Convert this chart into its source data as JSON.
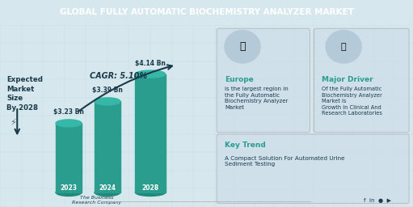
{
  "title": "GLOBAL FULLY AUTOMATIC BIOCHEMISTRY ANALYZER MARKET",
  "title_bg": "#1a3a4a",
  "title_color": "#ffffff",
  "left_bg": "#d6e8ee",
  "right_bg": "#dce9ef",
  "bar_color": "#2a9d8f",
  "bar_years": [
    "2023",
    "2024",
    "2028"
  ],
  "bar_values": [
    3.23,
    3.39,
    4.14
  ],
  "bar_labels": [
    "$3.23 Bn",
    "$3.39 Bn",
    "$4.14 Bn"
  ],
  "cagr_text": "CAGR: 5.10%",
  "expected_text": "Expected\nMarket\nSize\nBy 2028",
  "europe_title": "Europe",
  "europe_body": "is the largest region in\nthe Fully Automatic\nBiochemistry Analyzer\nMarket",
  "driver_title": "Major Driver",
  "driver_body": "Of the Fully Automatic\nBiochemistry Analyzer\nMarket is\nGrowth In Clinical And\nResearch Laboratories",
  "trend_title": "Key Trend",
  "trend_body": "A Compact Solution For Automated Urine\nSediment Testing",
  "company_name": "The Business\nResearch Company",
  "accent_color": "#2a9d8f",
  "dark_color": "#1a3a4a",
  "footer_bg": "#ffffff",
  "box_border": "#aaaaaa"
}
